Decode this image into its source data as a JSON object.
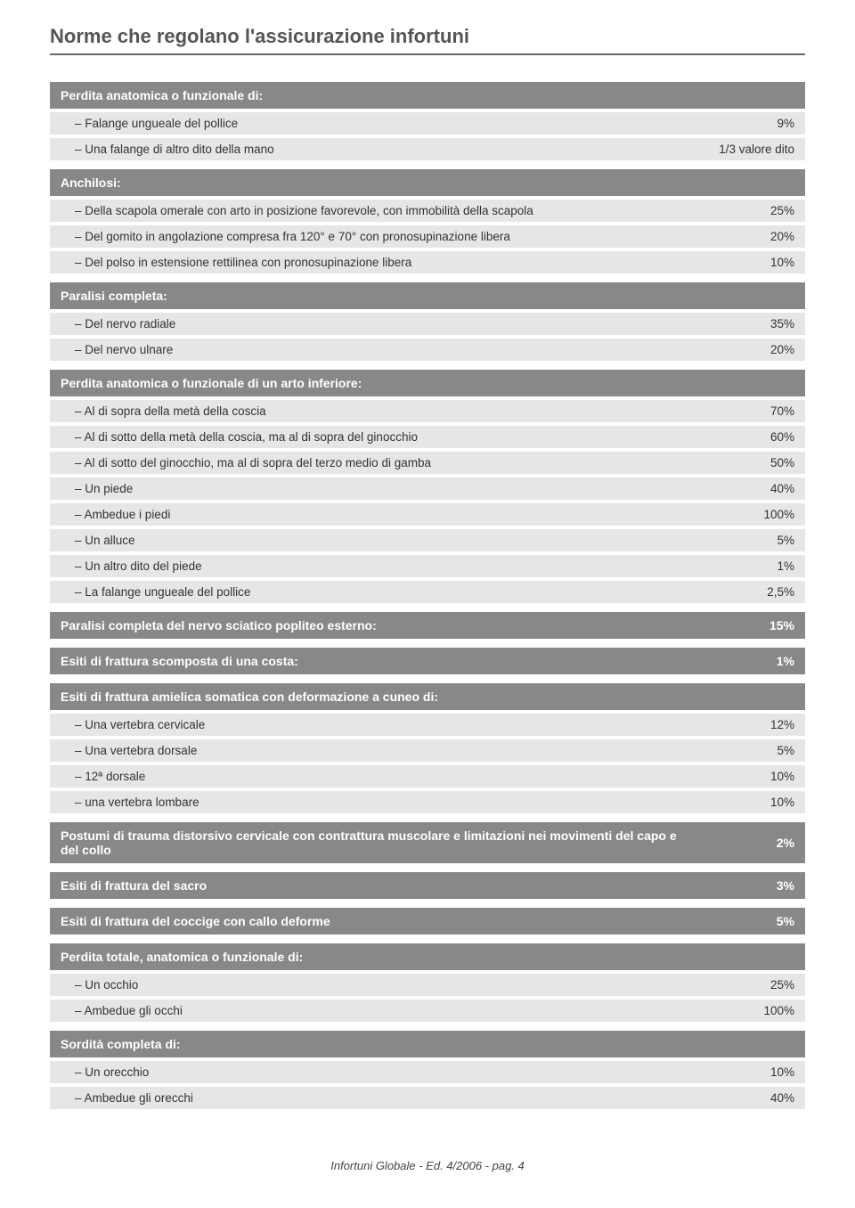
{
  "page_title": "Norme che regolano l'assicurazione infortuni",
  "footer": "Infortuni Globale - Ed. 4/2006 - pag. 4",
  "colors": {
    "header_bg": "#888888",
    "header_text": "#ffffff",
    "row_bg": "#e6e6e6",
    "row_text": "#333333",
    "title_color": "#555555",
    "title_underline": "#666666"
  },
  "sections": [
    {
      "header": "Perdita anatomica o funzionale di:",
      "header_value": "",
      "rows": [
        {
          "label": "–   Falange ungueale del pollice",
          "value": "9%"
        },
        {
          "label": "–   Una falange di altro dito della mano",
          "value": "1/3 valore dito"
        }
      ]
    },
    {
      "header": "Anchilosi:",
      "header_value": "",
      "rows": [
        {
          "label": "–   Della scapola omerale con arto in posizione favorevole, con immobilità della scapola",
          "value": "25%"
        },
        {
          "label": "–   Del gomito in angolazione compresa fra 120° e 70° con pronosupinazione libera",
          "value": "20%"
        },
        {
          "label": "–   Del polso in estensione rettilinea con pronosupinazione libera",
          "value": "10%"
        }
      ]
    },
    {
      "header": "Paralisi completa:",
      "header_value": "",
      "rows": [
        {
          "label": "–   Del nervo radiale",
          "value": "35%"
        },
        {
          "label": "–   Del nervo ulnare",
          "value": "20%"
        }
      ]
    },
    {
      "header": "Perdita anatomica o funzionale di un arto inferiore:",
      "header_value": "",
      "rows": [
        {
          "label": "–   Al di sopra della metà della coscia",
          "value": "70%"
        },
        {
          "label": "–   Al di sotto della metà della coscia, ma al di sopra del ginocchio",
          "value": "60%"
        },
        {
          "label": "–   Al di sotto del ginocchio, ma al di sopra del terzo medio di gamba",
          "value": "50%"
        },
        {
          "label": "–   Un piede",
          "value": "40%"
        },
        {
          "label": "–   Ambedue i piedi",
          "value": "100%"
        },
        {
          "label": "–   Un alluce",
          "value": "5%"
        },
        {
          "label": "–   Un altro dito del piede",
          "value": "1%"
        },
        {
          "label": "–   La falange ungueale del pollice",
          "value": "2,5%"
        }
      ]
    },
    {
      "header": "Paralisi completa del nervo sciatico popliteo esterno:",
      "header_value": "15%",
      "rows": []
    },
    {
      "header": "Esiti di frattura scomposta di una costa:",
      "header_value": "1%",
      "rows": []
    },
    {
      "header": "Esiti di frattura amielica somatica con deformazione a cuneo di:",
      "header_value": "",
      "rows": [
        {
          "label": "–   Una vertebra cervicale",
          "value": "12%"
        },
        {
          "label": "–   Una vertebra dorsale",
          "value": "5%"
        },
        {
          "label": "–   12ª dorsale",
          "value": "10%"
        },
        {
          "label": "–   una vertebra lombare",
          "value": "10%"
        }
      ]
    },
    {
      "header": "Postumi di trauma distorsivo cervicale con contrattura muscolare e limitazioni nei movimenti del capo e del collo",
      "header_value": "2%",
      "rows": []
    },
    {
      "header": "Esiti di frattura del sacro",
      "header_value": "3%",
      "rows": []
    },
    {
      "header": "Esiti di frattura del coccige con callo deforme",
      "header_value": "5%",
      "rows": []
    },
    {
      "header": "Perdita totale, anatomica o funzionale di:",
      "header_value": "",
      "rows": [
        {
          "label": "–   Un occhio",
          "value": "25%"
        },
        {
          "label": "–   Ambedue gli occhi",
          "value": "100%"
        }
      ]
    },
    {
      "header": "Sordità completa di:",
      "header_value": "",
      "rows": [
        {
          "label": "–   Un orecchio",
          "value": "10%"
        },
        {
          "label": "–   Ambedue gli orecchi",
          "value": "40%"
        }
      ]
    }
  ]
}
